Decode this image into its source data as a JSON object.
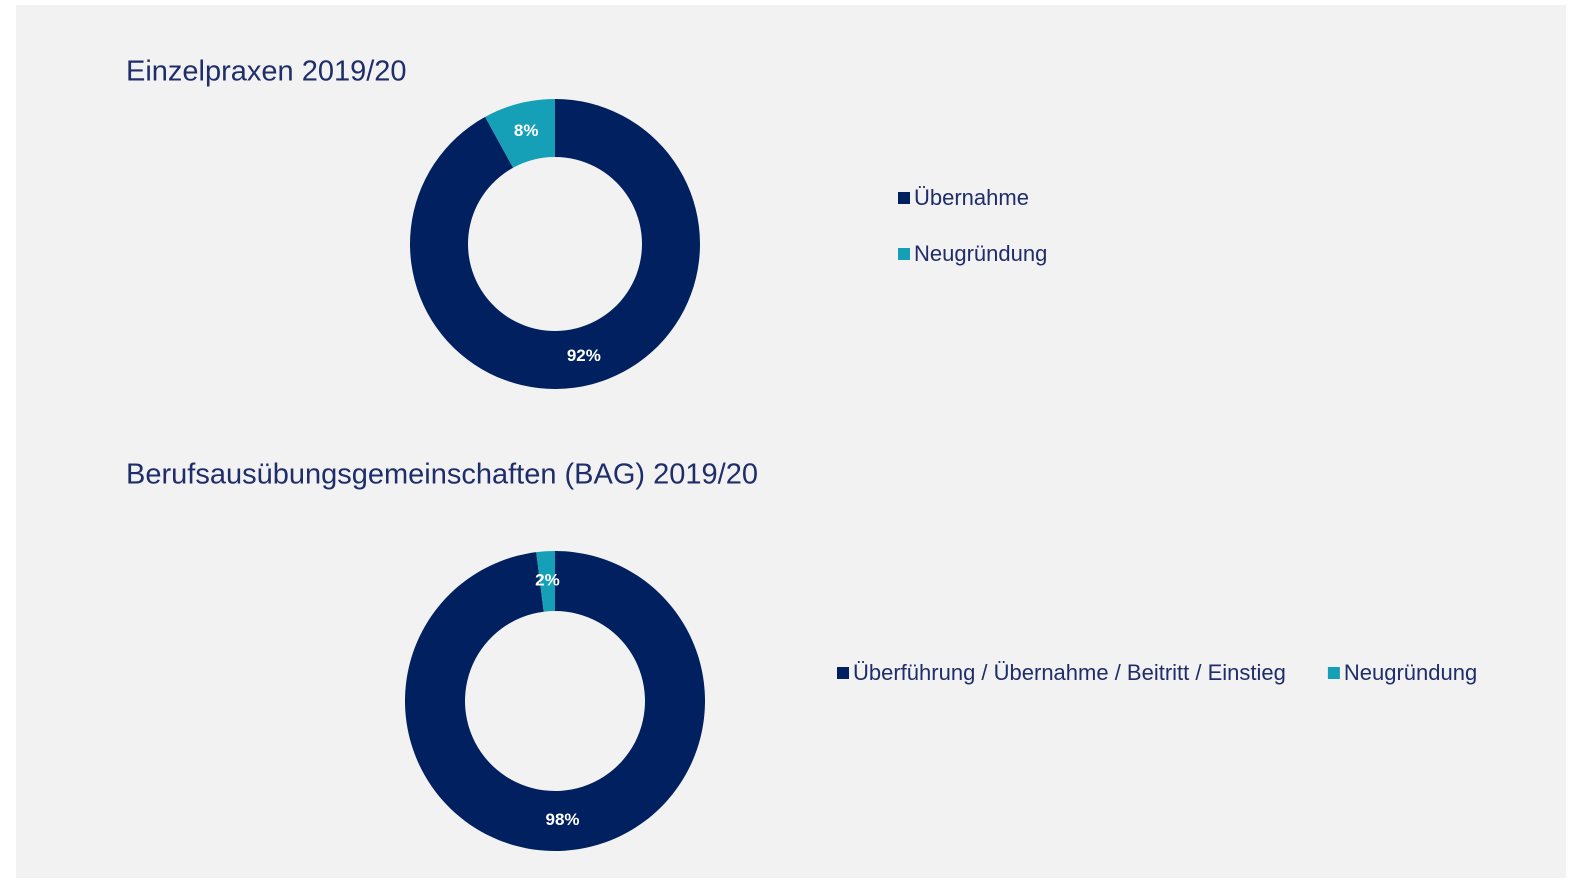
{
  "chart_data": [
    {
      "type": "donut",
      "title": "Einzelpraxen 2019/20",
      "categories": [
        "Übernahme",
        "Neugründung"
      ],
      "values": [
        92,
        8
      ],
      "value_labels": [
        "92%",
        "8%"
      ],
      "colors": [
        "#002060",
        "#16a0b8"
      ],
      "legend": "right",
      "legend_orientation": "vertical"
    },
    {
      "type": "donut",
      "title": "Berufsausübungsgemeinschaften (BAG) 2019/20",
      "categories": [
        "Überführung / Übernahme / Beitritt / Einstieg",
        "Neugründung"
      ],
      "values": [
        98,
        2
      ],
      "value_labels": [
        "98%",
        "2%"
      ],
      "colors": [
        "#002060",
        "#16a0b8"
      ],
      "legend": "right",
      "legend_orientation": "horizontal"
    }
  ]
}
